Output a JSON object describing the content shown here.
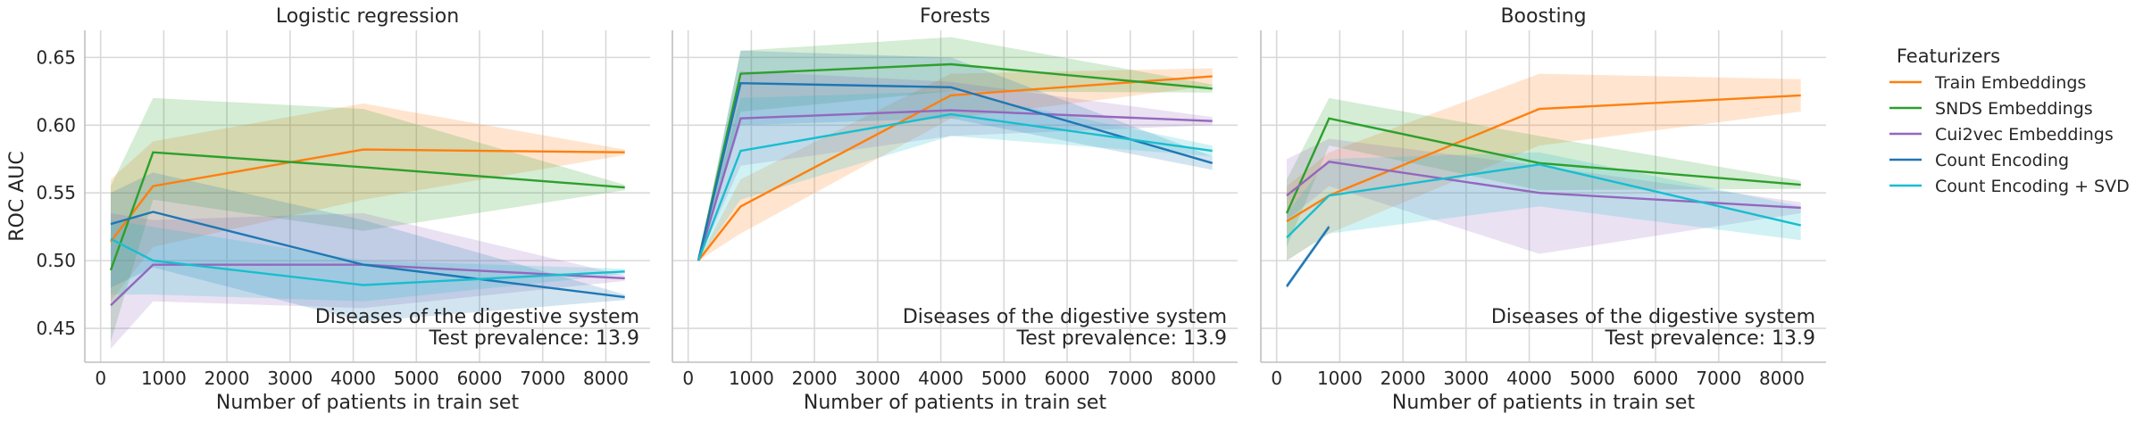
{
  "chart_data": {
    "type": "line",
    "ylabel": "ROC AUC",
    "xlabel": "Number of patients in train set",
    "ylim": [
      0.425,
      0.67
    ],
    "xlim": [
      -250,
      8700
    ],
    "xticks": [
      0,
      1000,
      2000,
      3000,
      4000,
      5000,
      6000,
      7000,
      8000
    ],
    "yticks": [
      0.45,
      0.5,
      0.55,
      0.6,
      0.65
    ],
    "ytick_labels": [
      "0.45",
      "0.50",
      "0.55",
      "0.60",
      "0.65"
    ],
    "grid": true,
    "legend": {
      "title": "Featurizers",
      "placement": "right",
      "entries": [
        {
          "name": "Train Embeddings",
          "color": "#ff7f0e"
        },
        {
          "name": "SNDS Embeddings",
          "color": "#2ca02c"
        },
        {
          "name": "Cui2vec Embeddings",
          "color": "#9467bd"
        },
        {
          "name": "Count Encoding",
          "color": "#1f77b4"
        },
        {
          "name": "Count Encoding + SVD",
          "color": "#17becf"
        }
      ]
    },
    "panels": [
      {
        "title": "Logistic regression",
        "annotation": [
          "Diseases of the digestive system",
          "Test prevalence: 13.9"
        ],
        "series": [
          {
            "name": "Train Embeddings",
            "x": [
              160,
              830,
              4160,
              8300
            ],
            "y": [
              0.514,
              0.555,
              0.582,
              0.58
            ],
            "lower": [
              0.47,
              0.51,
              0.545,
              0.578
            ],
            "upper": [
              0.56,
              0.588,
              0.616,
              0.582
            ]
          },
          {
            "name": "SNDS Embeddings",
            "x": [
              160,
              830,
              4160,
              8300
            ],
            "y": [
              0.493,
              0.58,
              0.569,
              0.554
            ],
            "lower": [
              0.44,
              0.545,
              0.522,
              0.552
            ],
            "upper": [
              0.555,
              0.62,
              0.612,
              0.556
            ]
          },
          {
            "name": "Cui2vec Embeddings",
            "x": [
              160,
              830,
              4160,
              8300
            ],
            "y": [
              0.467,
              0.497,
              0.497,
              0.487
            ],
            "lower": [
              0.435,
              0.47,
              0.465,
              0.485
            ],
            "upper": [
              0.535,
              0.53,
              0.535,
              0.489
            ]
          },
          {
            "name": "Count Encoding",
            "x": [
              160,
              830,
              4160,
              8300
            ],
            "y": [
              0.527,
              0.536,
              0.497,
              0.473
            ],
            "lower": [
              0.48,
              0.495,
              0.455,
              0.471
            ],
            "upper": [
              0.55,
              0.565,
              0.53,
              0.475
            ]
          },
          {
            "name": "Count Encoding + SVD",
            "x": [
              160,
              830,
              4160,
              8300
            ],
            "y": [
              0.516,
              0.5,
              0.482,
              0.492
            ],
            "lower": [
              0.475,
              0.475,
              0.47,
              0.49
            ],
            "upper": [
              0.53,
              0.525,
              0.5,
              0.494
            ]
          }
        ]
      },
      {
        "title": "Forests",
        "annotation": [
          "Diseases of the digestive system",
          "Test prevalence: 13.9"
        ],
        "series": [
          {
            "name": "Train Embeddings",
            "x": [
              160,
              830,
              4160,
              8300
            ],
            "y": [
              0.5,
              0.54,
              0.622,
              0.636
            ],
            "lower": [
              0.5,
              0.52,
              0.605,
              0.629
            ],
            "upper": [
              0.5,
              0.56,
              0.638,
              0.642
            ]
          },
          {
            "name": "SNDS Embeddings",
            "x": [
              160,
              830,
              4160,
              8300
            ],
            "y": [
              0.5,
              0.638,
              0.645,
              0.627
            ],
            "lower": [
              0.5,
              0.61,
              0.625,
              0.624
            ],
            "upper": [
              0.5,
              0.655,
              0.665,
              0.63
            ]
          },
          {
            "name": "Cui2vec Embeddings",
            "x": [
              160,
              830,
              4160,
              8300
            ],
            "y": [
              0.5,
              0.605,
              0.611,
              0.603
            ],
            "lower": [
              0.5,
              0.57,
              0.592,
              0.6
            ],
            "upper": [
              0.5,
              0.64,
              0.632,
              0.606
            ]
          },
          {
            "name": "Count Encoding",
            "x": [
              160,
              830,
              4160,
              8300
            ],
            "y": [
              0.5,
              0.631,
              0.628,
              0.572
            ],
            "lower": [
              0.5,
              0.6,
              0.605,
              0.567
            ],
            "upper": [
              0.5,
              0.655,
              0.65,
              0.577
            ]
          },
          {
            "name": "Count Encoding + SVD",
            "x": [
              160,
              830,
              4160,
              8300
            ],
            "y": [
              0.5,
              0.581,
              0.608,
              0.581
            ],
            "lower": [
              0.5,
              0.545,
              0.592,
              0.577
            ],
            "upper": [
              0.5,
              0.62,
              0.625,
              0.585
            ]
          }
        ]
      },
      {
        "title": "Boosting",
        "annotation": [
          "Diseases of the digestive system",
          "Test prevalence: 13.9"
        ],
        "series": [
          {
            "name": "Train Embeddings",
            "x": [
              160,
              830,
              4160,
              8300
            ],
            "y": [
              0.529,
              0.548,
              0.612,
              0.622
            ],
            "lower": [
              0.5,
              0.52,
              0.585,
              0.61
            ],
            "upper": [
              0.555,
              0.58,
              0.638,
              0.634
            ]
          },
          {
            "name": "SNDS Embeddings",
            "x": [
              160,
              830,
              4160,
              8300
            ],
            "y": [
              0.535,
              0.605,
              0.572,
              0.556
            ],
            "lower": [
              0.51,
              0.585,
              0.552,
              0.553
            ],
            "upper": [
              0.56,
              0.62,
              0.592,
              0.559
            ]
          },
          {
            "name": "Cui2vec Embeddings",
            "x": [
              160,
              830,
              4160,
              8300
            ],
            "y": [
              0.548,
              0.573,
              0.55,
              0.539
            ],
            "lower": [
              0.53,
              0.555,
              0.505,
              0.535
            ],
            "upper": [
              0.575,
              0.59,
              0.57,
              0.543
            ]
          },
          {
            "name": "Count Encoding",
            "x": [
              160,
              830
            ],
            "y": [
              0.481,
              0.525
            ],
            "lower": [
              0.479,
              0.523
            ],
            "upper": [
              0.483,
              0.527
            ]
          },
          {
            "name": "Count Encoding + SVD",
            "x": [
              160,
              830,
              4160,
              8300
            ],
            "y": [
              0.517,
              0.548,
              0.571,
              0.526
            ],
            "lower": [
              0.5,
              0.52,
              0.54,
              0.515
            ],
            "upper": [
              0.535,
              0.575,
              0.58,
              0.54
            ]
          }
        ]
      }
    ]
  }
}
